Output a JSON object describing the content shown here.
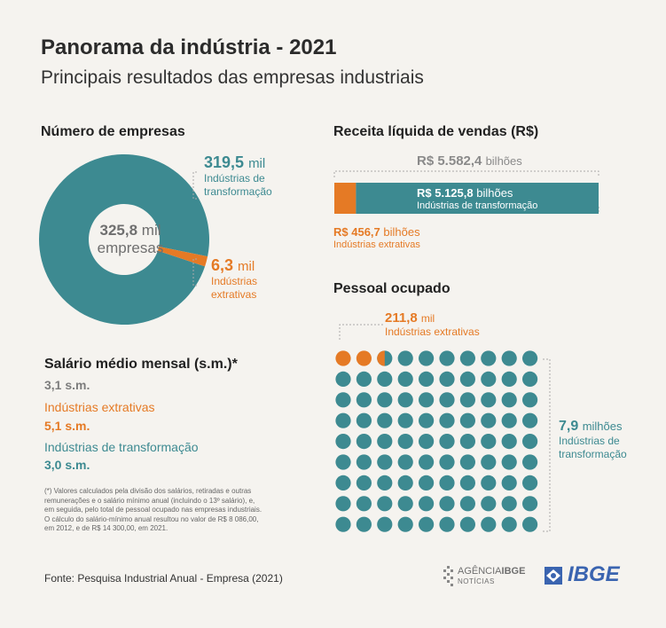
{
  "title": "Panorama da indústria - 2021",
  "subtitle": "Principais resultados das empresas industriais",
  "empresas": {
    "heading": "Número de empresas",
    "center_value": "325,8",
    "center_unit": "mil",
    "center_label": "empresas",
    "transf_value": "319,5",
    "transf_unit": "mil",
    "transf_label1": "Indústrias de",
    "transf_label2": "transformação",
    "extr_value": "6,3",
    "extr_unit": "mil",
    "extr_label1": "Indústrias",
    "extr_label2": "extrativas"
  },
  "receita": {
    "heading": "Receita líquida de vendas (R$)",
    "total_value": "R$ 5.582,4",
    "total_unit": "bilhões",
    "transf_value": "R$ 5.125,8",
    "transf_unit": "bilhões",
    "transf_label": "Indústrias de transformação",
    "extr_value": "R$ 456,7",
    "extr_unit": "bilhões",
    "extr_label": "Indústrias extrativas"
  },
  "pessoal": {
    "heading": "Pessoal ocupado",
    "extr_value": "211,8",
    "extr_unit": "mil",
    "extr_label": "Indústrias extrativas",
    "transf_value": "7,9",
    "transf_unit": "milhões",
    "transf_label1": "Indústrias de",
    "transf_label2": "transformação"
  },
  "salario": {
    "heading": "Salário médio mensal (s.m.)*",
    "total": "3,1 s.m.",
    "extr_label": "Indústrias extrativas",
    "extr_value": "5,1 s.m.",
    "transf_label": "Indústrias de transformação",
    "transf_value": "3,0 s.m.",
    "note_lines": [
      "(*) Valores calculados pela divisão dos salários, retiradas e outras",
      "remunerações e o salário mínimo anual (incluindo o 13º salário), e,",
      "em seguida, pelo total de pessoal ocupado nas empresas industriais.",
      "O cálculo do salário-mínimo anual resultou no valor de R$ 8 086,00,",
      "em 2012, e de R$ 14 300,00, em 2021."
    ]
  },
  "footer": {
    "source": "Fonte: Pesquisa Industrial Anual - Empresa (2021)",
    "logo1_line1": "AGÊNCIA",
    "logo1_line1b": "IBGE",
    "logo1_line2": "NOTÍCIAS",
    "logo2": "IBGE"
  },
  "colors": {
    "teal": "#3d8a91",
    "orange": "#e57a25",
    "gray": "#8a8a8a",
    "background": "#f5f3ef"
  },
  "chart_data": [
    {
      "type": "pie",
      "title": "Número de empresas",
      "categories": [
        "Indústrias de transformação",
        "Indústrias extrativas"
      ],
      "values": [
        319.5,
        6.3
      ],
      "unit": "mil"
    },
    {
      "type": "bar",
      "title": "Receita líquida de vendas (R$)",
      "categories": [
        "Indústrias extrativas",
        "Indústrias de transformação"
      ],
      "values": [
        456.7,
        5125.8
      ],
      "total": 5582.4,
      "unit": "bilhões"
    },
    {
      "type": "scatter",
      "title": "Pessoal ocupado",
      "categories": [
        "Indústrias extrativas",
        "Indústrias de transformação"
      ],
      "values": [
        211.8,
        7900
      ],
      "unit": "mil",
      "grid_rows": 9,
      "grid_cols": 10,
      "extr_dots": 2.6
    }
  ]
}
